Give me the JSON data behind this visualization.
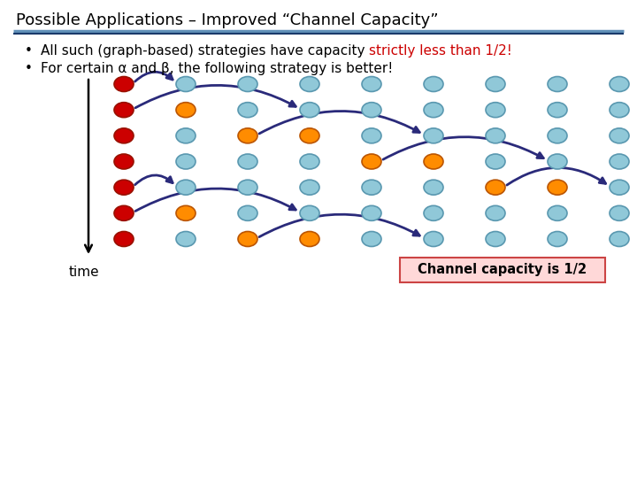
{
  "title": "Possible Applications – Improved “Channel Capacity”",
  "bullet1_normal": "All such (graph-based) strategies have capacity ",
  "bullet1_red": "strictly less than 1/2",
  "bullet1_end": "!",
  "bullet2": "For certain α and β, the following strategy is better!",
  "time_label": "time",
  "box_label": "Channel capacity is 1/2",
  "nrows": 7,
  "ncols": 9,
  "title_color": "#000000",
  "red_color": "#cc0000",
  "orange_color": "#ff8c00",
  "light_blue_color": "#90c8d8",
  "arrow_color": "#2a2a7a",
  "box_bg": "#ffd8d8",
  "box_edge": "#cc4444",
  "title_fontsize": 13,
  "body_fontsize": 11,
  "node_colors": [
    [
      "red",
      "blue",
      "blue",
      "blue",
      "blue",
      "blue",
      "blue",
      "blue",
      "blue"
    ],
    [
      "red",
      "orange",
      "blue",
      "blue",
      "blue",
      "blue",
      "blue",
      "blue",
      "blue"
    ],
    [
      "red",
      "blue",
      "orange",
      "orange",
      "blue",
      "blue",
      "blue",
      "blue",
      "blue"
    ],
    [
      "red",
      "blue",
      "blue",
      "blue",
      "orange",
      "orange",
      "blue",
      "blue",
      "blue"
    ],
    [
      "red",
      "blue",
      "blue",
      "blue",
      "blue",
      "blue",
      "orange",
      "orange",
      "blue"
    ],
    [
      "red",
      "orange",
      "blue",
      "blue",
      "blue",
      "blue",
      "blue",
      "blue",
      "blue"
    ],
    [
      "red",
      "blue",
      "orange",
      "orange",
      "blue",
      "blue",
      "blue",
      "blue",
      "blue"
    ]
  ],
  "arrows": [
    {
      "row": 0,
      "c1": 0,
      "c2": 1,
      "rad": -0.5
    },
    {
      "row": 1,
      "c1": 0,
      "c2": 3,
      "rad": -0.28
    },
    {
      "row": 2,
      "c1": 2,
      "c2": 5,
      "rad": -0.28
    },
    {
      "row": 3,
      "c1": 4,
      "c2": 7,
      "rad": -0.28
    },
    {
      "row": 4,
      "c1": 0,
      "c2": 1,
      "rad": -0.5
    },
    {
      "row": 4,
      "c1": 6,
      "c2": 8,
      "rad": -0.35
    },
    {
      "row": 5,
      "c1": 0,
      "c2": 3,
      "rad": -0.28
    },
    {
      "row": 6,
      "c1": 2,
      "c2": 5,
      "rad": -0.28
    }
  ]
}
